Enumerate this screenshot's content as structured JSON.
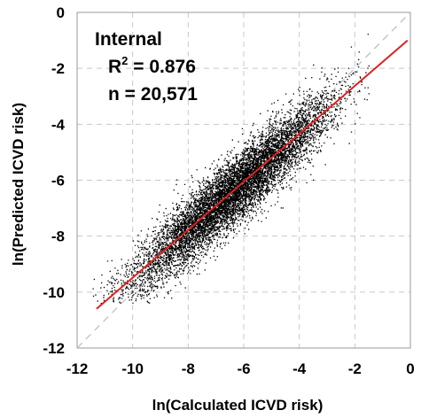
{
  "chart_data": {
    "type": "scatter",
    "title": "",
    "xlabel": "ln(Calculated ICVD risk)",
    "ylabel": "ln(Predicted ICVD risk)",
    "xlim": [
      -12,
      0
    ],
    "ylim": [
      -12,
      0
    ],
    "xticks": [
      -12,
      -10,
      -8,
      -6,
      -4,
      -2,
      0
    ],
    "yticks": [
      -12,
      -10,
      -8,
      -6,
      -4,
      -2,
      0
    ],
    "xtick_labels": [
      "-12",
      "-10",
      "-8",
      "-6",
      "-4",
      "-2",
      "0"
    ],
    "ytick_labels": [
      "-12",
      "-10",
      "-8",
      "-6",
      "-4",
      "-2",
      "0"
    ],
    "grid": true,
    "annotation": {
      "group": "Internal",
      "r2_prefix": "R",
      "r2_sup": "2",
      "r2_value": " = 0.876",
      "n_text": "n = 20,571"
    },
    "point_cloud": {
      "n": 20571,
      "x_range": [
        -11.5,
        -1.5
      ],
      "center": [
        -6.4,
        -6.2
      ],
      "color": "#000000"
    },
    "fit_line": {
      "x": [
        -11.3,
        -0.1
      ],
      "y": [
        -10.6,
        -1.0
      ],
      "color": "#e02020"
    },
    "identity_line": {
      "x": [
        -12,
        0
      ],
      "y": [
        -12,
        0
      ],
      "color": "#bbbbbb"
    }
  }
}
